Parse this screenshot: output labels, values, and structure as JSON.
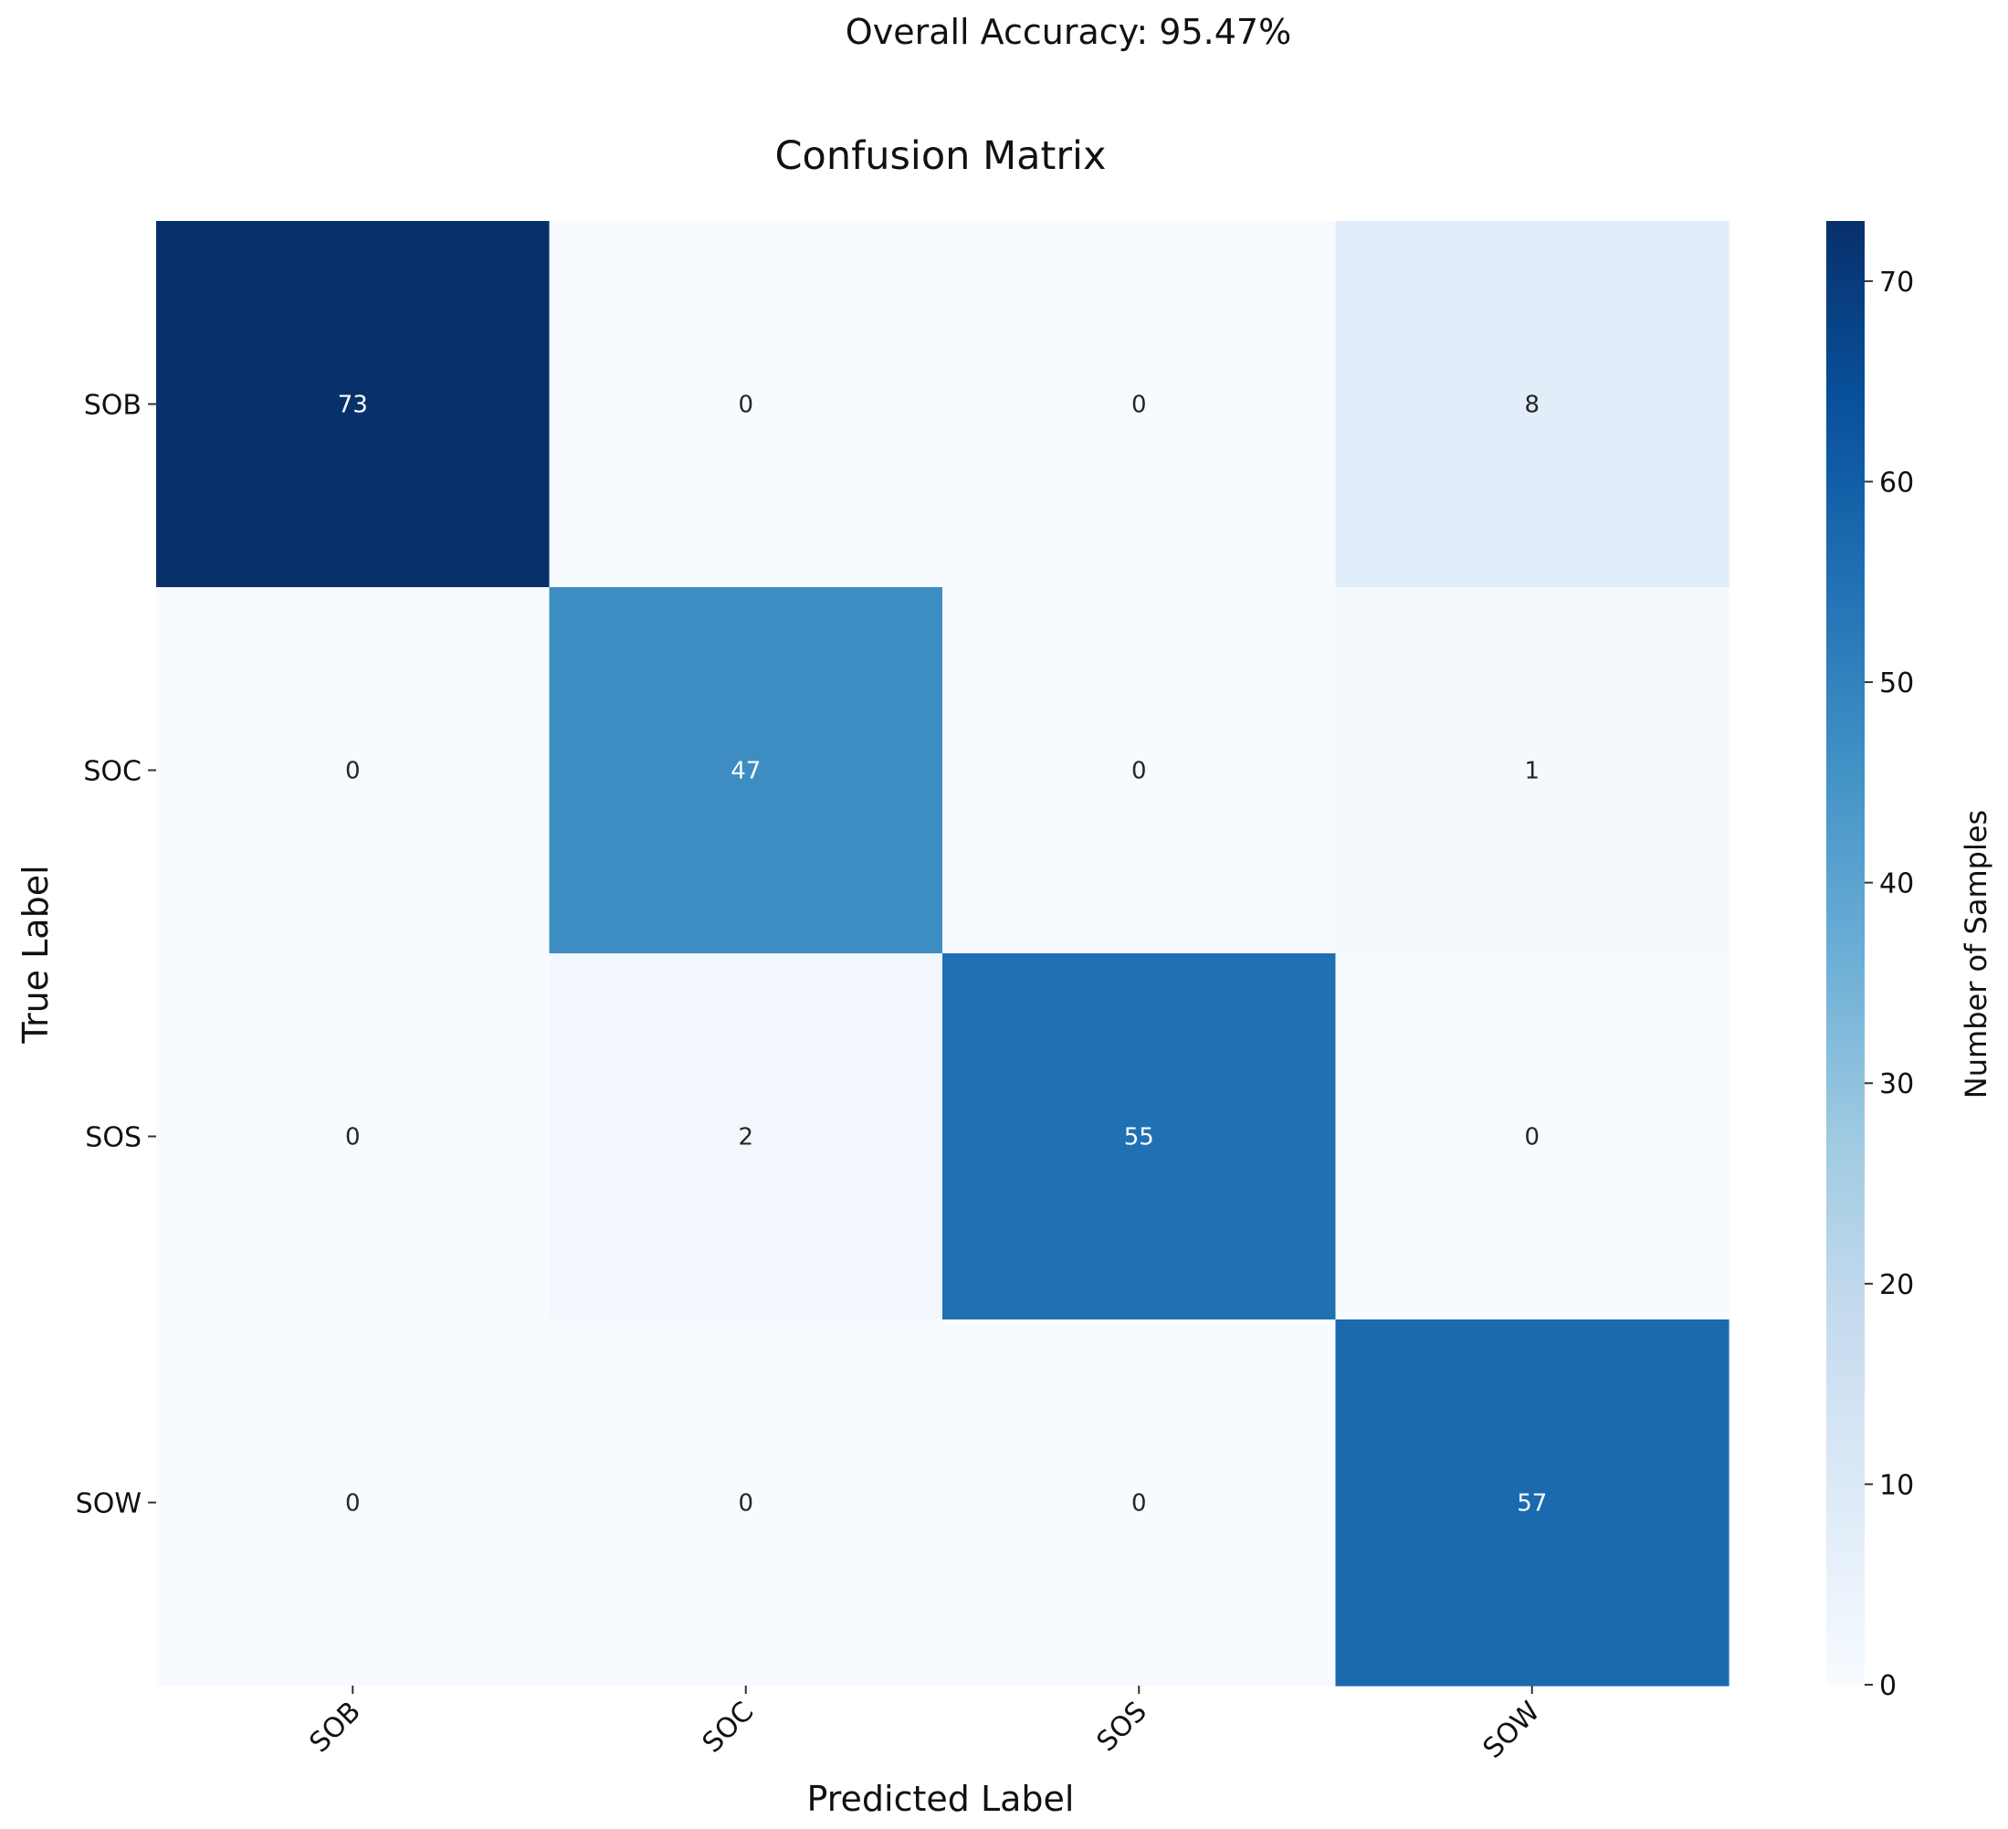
{
  "chart_data": {
    "type": "heatmap",
    "suptitle": "Overall Accuracy: 95.47%",
    "title": "Confusion Matrix",
    "xlabel": "Predicted Label",
    "ylabel": "True Label",
    "rows": [
      "SOB",
      "SOC",
      "SOS",
      "SOW"
    ],
    "cols": [
      "SOB",
      "SOC",
      "SOS",
      "SOW"
    ],
    "values": [
      [
        73,
        0,
        0,
        8
      ],
      [
        0,
        47,
        0,
        1
      ],
      [
        0,
        2,
        55,
        0
      ],
      [
        0,
        0,
        0,
        57
      ]
    ],
    "vmin": 0,
    "vmax": 73,
    "colormap": "Blues",
    "colorbar": {
      "label": "Number of Samples",
      "ticks": [
        0,
        10,
        20,
        30,
        40,
        50,
        60,
        70
      ]
    }
  }
}
